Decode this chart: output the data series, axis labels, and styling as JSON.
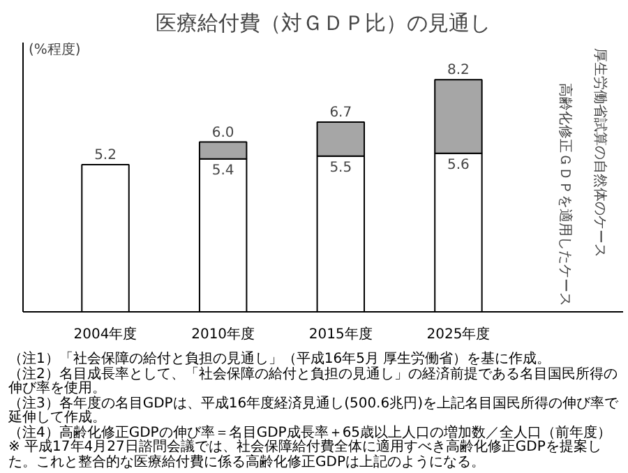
{
  "chart_data": {
    "type": "bar",
    "title": "医療給付費（対ＧＤＰ比）の見通し",
    "ylabel": "(%程度)",
    "categories": [
      "2004年度",
      "2010年度",
      "2015年度",
      "2025年度"
    ],
    "stacked": true,
    "series": [
      {
        "color": "#ffffff",
        "values": [
          5.2,
          5.4,
          5.5,
          5.6
        ],
        "value_labels": [
          "5.2",
          "5.4",
          "5.5",
          "5.6"
        ]
      },
      {
        "color": "#a6a6a6",
        "values": [
          null,
          0.6,
          1.2,
          2.6
        ]
      }
    ],
    "totals": [
      null,
      "6.0",
      "6.7",
      "8.2"
    ],
    "tick_labels": "x",
    "grid": false,
    "annotations": [
      "厚生労働省試算の自然体のケース",
      "高齢化修正ＧＤＰを適用したケース",
      "（注1）「社会保障の給付と負担の見通し」（平成16年5月 厚生労働省）を基に作成。",
      "（注2）名目成長率として、「社会保障の給付と負担の見通し」の経済前提である名目国民所得の伸び率を使用。",
      "（注3）各年度の名目GDPは、平成16年度経済見通し(500.6兆円)を上記名目国民所得の伸び率で延伸して作成。",
      "（注4）高齢化修正GDPの伸び率＝名目GDP成長率＋65歳以上人口の増加数／全人口（前年度）",
      "※ 平成17年4月27日諮問会議では、社会保障給付費全体に適用すべき高齢化修正GDPを提案した。これと整合的な医療給付費に係る高齢化修正GDPは上記のようになる。"
    ]
  }
}
